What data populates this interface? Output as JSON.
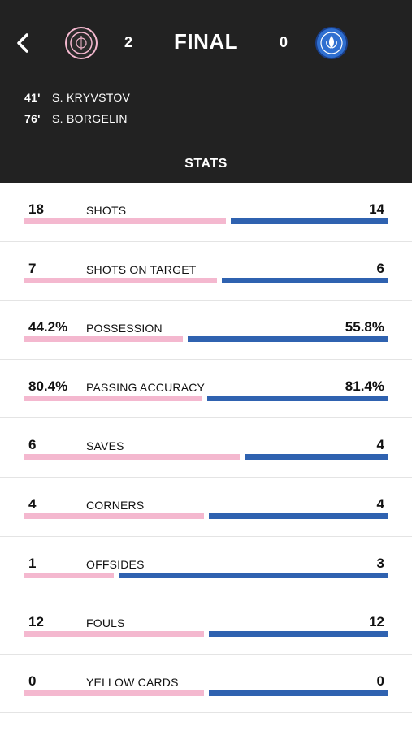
{
  "colors": {
    "header_bg": "#222222",
    "home": "#f4b8cf",
    "away": "#2f62b0"
  },
  "match": {
    "status": "FINAL",
    "home_score": "2",
    "away_score": "0",
    "home_crest_icon": "inter-miami-crest-icon",
    "away_crest_icon": "cf-montreal-crest-icon"
  },
  "goals": [
    {
      "minute": "41'",
      "scorer": "S. KRYVSTOV"
    },
    {
      "minute": "76'",
      "scorer": "S. BORGELIN"
    }
  ],
  "tab": {
    "label": "STATS"
  },
  "stats": [
    {
      "label": "SHOTS",
      "home": "18",
      "away": "14",
      "home_share": 0.5625
    },
    {
      "label": "SHOTS ON TARGET",
      "home": "7",
      "away": "6",
      "home_share": 0.538
    },
    {
      "label": "POSSESSION",
      "home": "44.2%",
      "away": "55.8%",
      "home_share": 0.442
    },
    {
      "label": "PASSING ACCURACY",
      "home": "80.4%",
      "away": "81.4%",
      "home_share": 0.497
    },
    {
      "label": "SAVES",
      "home": "6",
      "away": "4",
      "home_share": 0.6
    },
    {
      "label": "CORNERS",
      "home": "4",
      "away": "4",
      "home_share": 0.5
    },
    {
      "label": "OFFSIDES",
      "home": "1",
      "away": "3",
      "home_share": 0.25
    },
    {
      "label": "FOULS",
      "home": "12",
      "away": "12",
      "home_share": 0.5
    },
    {
      "label": "YELLOW CARDS",
      "home": "0",
      "away": "0",
      "home_share": 0.5
    }
  ]
}
